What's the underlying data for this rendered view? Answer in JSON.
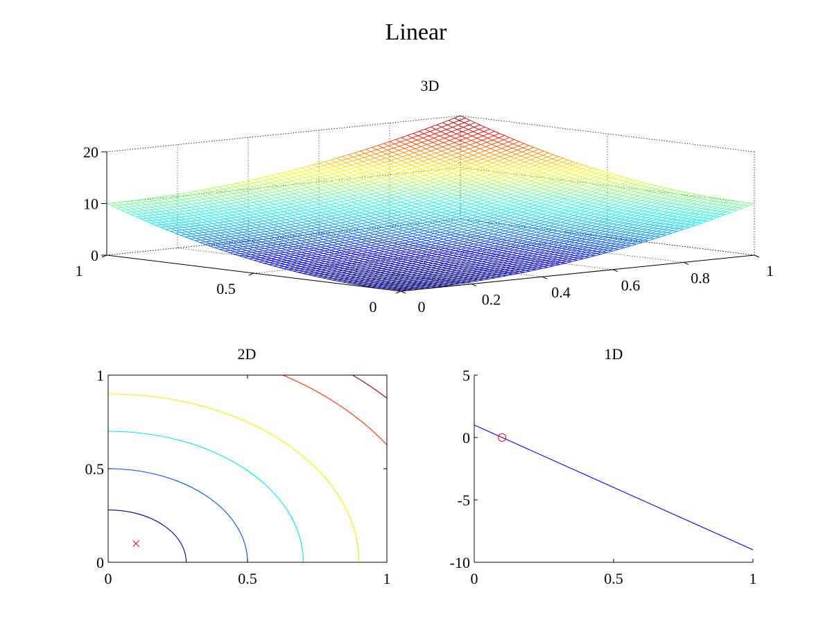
{
  "figure": {
    "title": "Linear"
  },
  "chart_data": [
    {
      "type": "surface",
      "title": "3D",
      "surface": "f(x,y) = 10*(x^2 + y^2) on x,y in [0,1]",
      "xlim": [
        0,
        1
      ],
      "ylim": [
        0,
        1
      ],
      "zlim": [
        0,
        20
      ],
      "x_ticks": [
        "0",
        "0.2",
        "0.4",
        "0.6",
        "0.8",
        "1"
      ],
      "y_ticks": [
        "0",
        "0.5",
        "1"
      ],
      "z_ticks": [
        "0",
        "10",
        "20"
      ],
      "colormap": "jet",
      "grid": true
    },
    {
      "type": "contour",
      "title": "2D",
      "xlim": [
        0,
        1
      ],
      "ylim": [
        0,
        1
      ],
      "x_ticks": [
        "0",
        "0.5",
        "1"
      ],
      "y_ticks": [
        "0",
        "0.5",
        "1"
      ],
      "levels": [
        {
          "radius": 0.28,
          "color": "#00007f"
        },
        {
          "radius": 0.5,
          "color": "#0050ff"
        },
        {
          "radius": 0.7,
          "color": "#00dfff"
        },
        {
          "radius": 0.9,
          "color": "#ffe600"
        },
        {
          "radius": 1.18,
          "color": "#ff3000"
        },
        {
          "radius": 1.33,
          "color": "#7f0000"
        }
      ],
      "marker": {
        "x": 0.1,
        "y": 0.1,
        "symbol": "x",
        "color": "#ff0000"
      }
    },
    {
      "type": "line",
      "title": "1D",
      "xlim": [
        0,
        1
      ],
      "ylim": [
        -10,
        5
      ],
      "x_ticks": [
        "0",
        "0.5",
        "1"
      ],
      "y_ticks": [
        "5",
        "0",
        "-5",
        "-10"
      ],
      "series": [
        {
          "x": [
            0,
            1
          ],
          "y": [
            1,
            -9
          ],
          "color": "#0000ff"
        }
      ],
      "marker": {
        "x": 0.1,
        "y": 0,
        "symbol": "o",
        "color": "#ff0000"
      }
    }
  ]
}
